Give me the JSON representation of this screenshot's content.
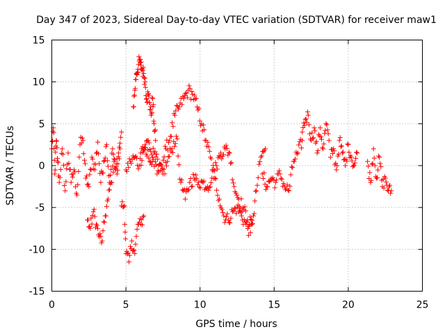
{
  "chart_data": {
    "type": "scatter",
    "title": "Day 347 of 2023, Sidereal Day-to-day VTEC variation (SDTVAR) for receiver maw1",
    "xlabel": "GPS time / hours",
    "ylabel": "SDTVAR / TECUs",
    "xlim": [
      0,
      25
    ],
    "ylim": [
      -15,
      15
    ],
    "xticks": [
      0,
      5,
      10,
      15,
      20,
      25
    ],
    "yticks": [
      -15,
      -10,
      -5,
      0,
      5,
      10,
      15
    ],
    "grid": true,
    "marker": "+",
    "color": "#ff0000",
    "series": [
      {
        "name": "SDTVAR",
        "segments": [
          {
            "x": [
              0.0,
              0.1,
              0.2,
              0.3,
              0.4,
              0.5,
              0.7,
              0.9,
              1.1,
              1.3,
              1.5,
              1.7,
              1.9,
              2.1,
              2.3,
              2.5,
              2.7,
              2.9,
              3.1,
              3.3,
              3.5,
              3.7,
              3.9,
              4.1,
              4.3,
              4.5,
              4.7
            ],
            "y": [
              2,
              4.5,
              -1,
              3,
              0.5,
              -2,
              2,
              -3,
              1.5,
              -2,
              -0.5,
              -3.5,
              2.5,
              3,
              -1.5,
              -2.5,
              1,
              -0.5,
              2.8,
              -2,
              0.5,
              2.5,
              -2,
              2,
              -0.5,
              1.5,
              4
            ]
          },
          {
            "x": [
              2.4,
              2.6,
              2.8,
              3.0,
              3.2,
              3.4,
              3.6,
              3.8,
              4.0,
              4.2,
              4.4,
              4.6
            ],
            "y": [
              -6.5,
              -7.5,
              -5.5,
              -7,
              -8.5,
              -9,
              -6,
              -4,
              -2,
              0.5,
              -1,
              2
            ]
          },
          {
            "x": [
              4.7,
              4.9,
              5.0,
              5.2,
              5.4,
              5.6,
              5.8,
              6.0,
              6.2
            ],
            "y": [
              -4.8,
              -4.8,
              -10.5,
              -11.5,
              -9,
              -10.5,
              -7,
              -7,
              -6
            ]
          },
          {
            "x": [
              5.5,
              5.6,
              5.7,
              5.8,
              5.9,
              6.0,
              6.1,
              6.2,
              6.3,
              6.4,
              6.5,
              6.6,
              6.7,
              6.8,
              6.9,
              7.0
            ],
            "y": [
              7,
              9,
              11,
              11.5,
              12.5,
              12,
              11.5,
              11,
              10,
              8,
              8.5,
              7.5,
              6,
              8,
              5,
              3
            ]
          },
          {
            "x": [
              5.0,
              5.3,
              5.6,
              5.9,
              6.2,
              6.5,
              6.8,
              7.1,
              7.4,
              7.7,
              8.0,
              8.3,
              8.6,
              8.9,
              9.2,
              9.5,
              9.8,
              10.1,
              10.4,
              10.7,
              11.0,
              11.3,
              11.6,
              11.9,
              12.2,
              12.5,
              12.8,
              13.1,
              13.4,
              13.6,
              13.8,
              14.1,
              14.4
            ],
            "y": [
              -0.5,
              0.5,
              1,
              0,
              2,
              3,
              1,
              -1,
              0,
              2,
              3.5,
              6,
              7,
              8,
              9,
              8.5,
              7,
              5,
              3,
              1,
              -1.5,
              -4,
              -6,
              -6.5,
              -5.5,
              -5,
              -6,
              -7,
              -8,
              -6,
              -3,
              1,
              2
            ]
          },
          {
            "x": [
              6.0,
              6.3,
              6.6,
              6.9,
              7.2,
              7.5,
              7.8,
              8.1,
              8.4,
              8.7,
              9.0,
              9.3,
              9.6,
              9.9,
              10.2,
              10.5,
              10.8,
              11.1,
              11.4,
              11.7,
              12.0,
              12.3,
              12.6,
              12.9,
              13.2,
              13.5
            ],
            "y": [
              1.5,
              2.5,
              0.5,
              1.5,
              0,
              -1,
              0.5,
              2,
              3.5,
              -2,
              -4,
              -2,
              -1.5,
              -2,
              -2,
              -2.5,
              -1.5,
              0,
              1.5,
              2,
              1.5,
              -2.5,
              -4,
              -5,
              -6.5,
              -7
            ]
          },
          {
            "x": [
              14.2,
              14.5,
              14.8,
              15.1,
              15.4,
              15.7,
              16.0,
              16.3,
              16.6,
              16.9
            ],
            "y": [
              -1,
              -2.5,
              -1.5,
              -2,
              -1,
              -2.5,
              -3,
              0.5,
              1.5,
              3
            ]
          },
          {
            "x": [
              16.9,
              17.1,
              17.3,
              17.5,
              17.7,
              17.9,
              18.1,
              18.3,
              18.5,
              18.7
            ],
            "y": [
              4,
              5.5,
              6,
              3,
              4.5,
              1.5,
              4.5,
              2,
              5,
              3
            ]
          },
          {
            "x": [
              18.8,
              19.0,
              19.2,
              19.4,
              19.6,
              19.8,
              20.0,
              20.2,
              20.4,
              20.6
            ],
            "y": [
              1,
              2,
              -0.5,
              3,
              1.5,
              0,
              2.5,
              1,
              0,
              1.5
            ]
          },
          {
            "x": [
              21.3,
              21.5,
              21.7,
              21.9,
              22.1,
              22.3,
              22.5,
              22.7,
              22.9
            ],
            "y": [
              0.5,
              -2,
              2,
              -1.5,
              1,
              -2.5,
              -1.5,
              -3,
              -3
            ]
          }
        ]
      }
    ]
  }
}
